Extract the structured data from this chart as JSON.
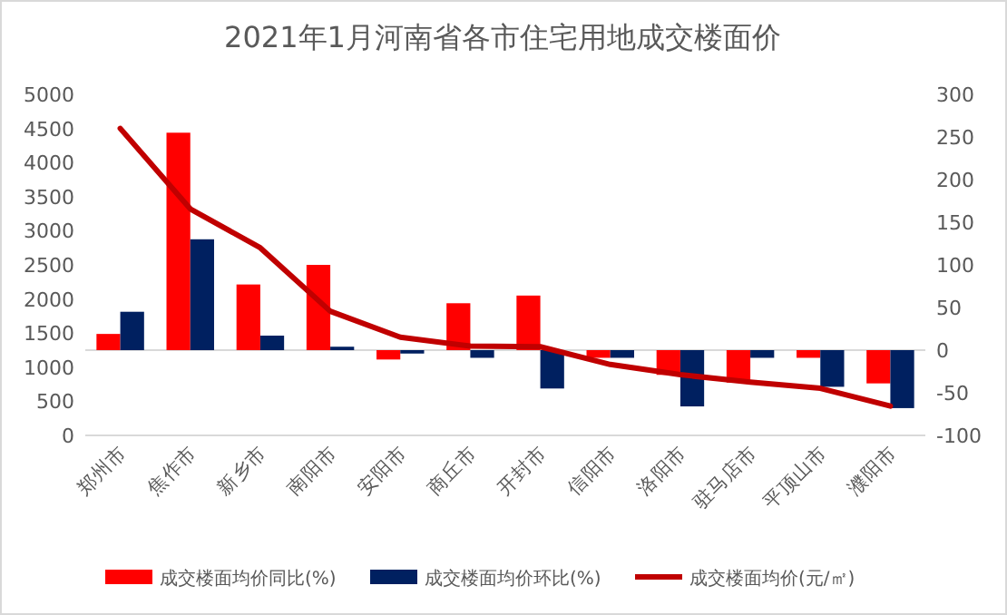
{
  "chart_data": {
    "type": "bar",
    "title": "2021年1月河南省各市住宅用地成交楼面价",
    "categories": [
      "郑州市",
      "焦作市",
      "新乡市",
      "南阳市",
      "安阳市",
      "商丘市",
      "开封市",
      "信阳市",
      "洛阳市",
      "驻马店市",
      "平顶山市",
      "濮阳市"
    ],
    "series": [
      {
        "name": "成交楼面均价同比(%)",
        "axis": "y2",
        "color": "#ff0000",
        "values": [
          19,
          255,
          77,
          100,
          -11,
          55,
          64,
          -9,
          -29,
          -38,
          -9,
          -39
        ]
      },
      {
        "name": "成交楼面均价环比(%)",
        "axis": "y2",
        "color": "#002060",
        "values": [
          45,
          130,
          17,
          4,
          -4,
          -9,
          -45,
          -9,
          -66,
          -9,
          -43,
          -68
        ]
      },
      {
        "name": "成交楼面均价(元/㎡)",
        "type": "line",
        "axis": "y",
        "color": "#c00000",
        "values": [
          4500,
          3320,
          2750,
          1820,
          1440,
          1310,
          1300,
          1040,
          890,
          780,
          690,
          430
        ]
      }
    ],
    "ylim": [
      0,
      5000
    ],
    "yticks": [
      0,
      500,
      1000,
      1500,
      2000,
      2500,
      3000,
      3500,
      4000,
      4500,
      5000
    ],
    "y2lim": [
      -100,
      300
    ],
    "y2ticks": [
      -100,
      -50,
      0,
      50,
      100,
      150,
      200,
      250,
      300
    ],
    "legend": "bottom",
    "marker": "none",
    "line_style": "solid"
  }
}
